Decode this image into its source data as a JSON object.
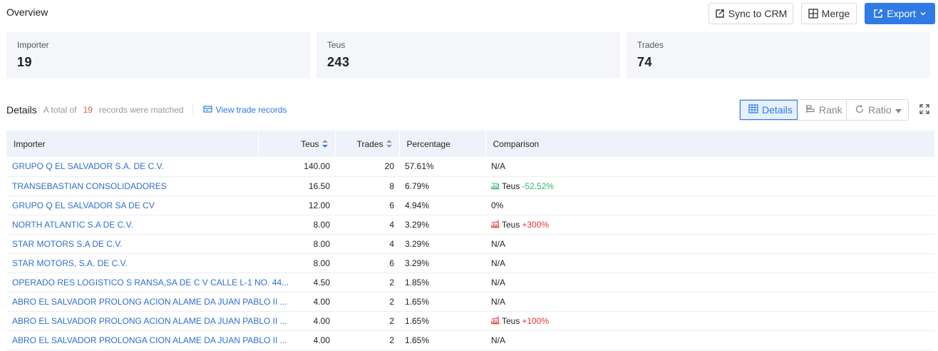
{
  "overview": {
    "title": "Overview"
  },
  "toolbar": {
    "sync_label": "Sync to CRM",
    "merge_label": "Merge",
    "export_label": "Export"
  },
  "stats": [
    {
      "label": "Importer",
      "value": "19"
    },
    {
      "label": "Teus",
      "value": "243"
    },
    {
      "label": "Trades",
      "value": "74"
    }
  ],
  "details": {
    "title": "Details",
    "prefix": "A total of",
    "count": "19",
    "suffix": "records were matched",
    "view_link": "View trade records"
  },
  "view_modes": [
    {
      "label": "Details",
      "icon": "table-icon",
      "active": true
    },
    {
      "label": "Rank",
      "icon": "rank-icon",
      "active": false
    },
    {
      "label": "Ratio",
      "icon": "refresh-icon",
      "active": false
    }
  ],
  "table": {
    "headers": [
      "Importer",
      "Teus",
      "Trades",
      "Percentage",
      "Comparison"
    ],
    "rows": [
      {
        "importer": "GRUPO Q EL SALVADOR S.A. DE C.V.",
        "teus": "140.00",
        "trades": "20",
        "percentage": "57.61%",
        "cmp_label": "N/A",
        "cmp_change": "",
        "trend": ""
      },
      {
        "importer": "TRANSEBASTIAN CONSOLIDADORES",
        "teus": "16.50",
        "trades": "8",
        "percentage": "6.79%",
        "cmp_label": "Teus",
        "cmp_change": "-52.52%",
        "trend": "down"
      },
      {
        "importer": "GRUPO Q EL SALVADOR SA DE CV",
        "teus": "12.00",
        "trades": "6",
        "percentage": "4.94%",
        "cmp_label": "0%",
        "cmp_change": "",
        "trend": ""
      },
      {
        "importer": "NORTH ATLANTIC S.A DE C.V.",
        "teus": "8.00",
        "trades": "4",
        "percentage": "3.29%",
        "cmp_label": "Teus",
        "cmp_change": "+300%",
        "trend": "up"
      },
      {
        "importer": "STAR MOTORS S.A DE C.V.",
        "teus": "8.00",
        "trades": "4",
        "percentage": "3.29%",
        "cmp_label": "N/A",
        "cmp_change": "",
        "trend": ""
      },
      {
        "importer": "STAR MOTORS, S.A. DE C.V.",
        "teus": "8.00",
        "trades": "6",
        "percentage": "3.29%",
        "cmp_label": "N/A",
        "cmp_change": "",
        "trend": ""
      },
      {
        "importer": "OPERADO RES LOGISTICO S RANSA,SA DE C V CALLE L-1 NO. 44...",
        "teus": "4.50",
        "trades": "2",
        "percentage": "1.85%",
        "cmp_label": "N/A",
        "cmp_change": "",
        "trend": ""
      },
      {
        "importer": "ABRO EL SALVADOR PROLONG ACION ALAME DA JUAN PABLO II ...",
        "teus": "4.00",
        "trades": "2",
        "percentage": "1.65%",
        "cmp_label": "N/A",
        "cmp_change": "",
        "trend": ""
      },
      {
        "importer": "ABRO EL SALVADOR PROLONG ACION ALAME DA JUAN PABLO II ...",
        "teus": "4.00",
        "trades": "2",
        "percentage": "1.65%",
        "cmp_label": "Teus",
        "cmp_change": "+100%",
        "trend": "up"
      },
      {
        "importer": "ABRO EL SALVADOR PROLONGA CION ALAME DA JUAN PABLO II ...",
        "teus": "4.00",
        "trades": "2",
        "percentage": "1.65%",
        "cmp_label": "N/A",
        "cmp_change": "",
        "trend": ""
      }
    ]
  },
  "colors": {
    "primary": "#2f7ae5",
    "link": "#2f6fcc",
    "up": "#e5372f",
    "down": "#35b66b",
    "count": "#e05a47"
  }
}
